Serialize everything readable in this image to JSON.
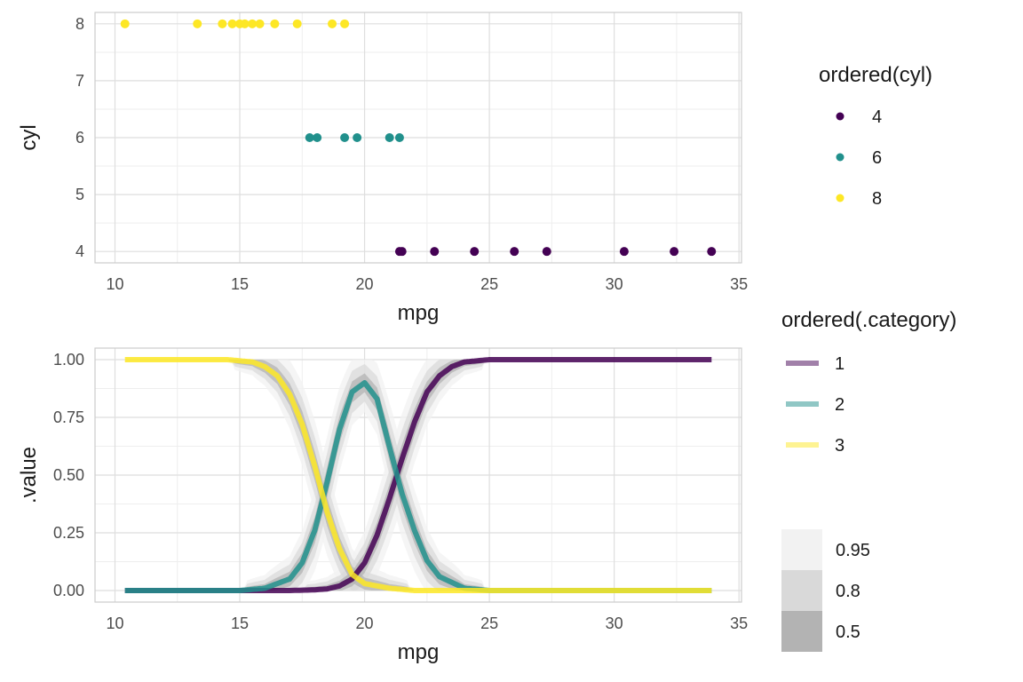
{
  "colors": {
    "cyl_4": "#440154",
    "cyl_6": "#21908C",
    "cyl_8": "#FDE725",
    "ribbon_95": "#f2f2f2",
    "ribbon_80": "#d9d9d9",
    "ribbon_50": "#b3b3b3",
    "grid_major": "#dedede",
    "grid_minor": "#eeeeee",
    "panel_border": "#cccccc"
  },
  "chart_data": [
    {
      "type": "scatter",
      "xlabel": "mpg",
      "ylabel": "cyl",
      "xlim": [
        9.2,
        35.1
      ],
      "ylim": [
        3.8,
        8.2
      ],
      "x_ticks": [
        10,
        15,
        20,
        25,
        30,
        35
      ],
      "y_ticks": [
        4,
        5,
        6,
        7,
        8
      ],
      "grid": true,
      "legend": {
        "title": "ordered(cyl)",
        "position": "right",
        "entries": [
          "4",
          "6",
          "8"
        ]
      },
      "series": [
        {
          "name": "4",
          "color": "#440154",
          "y": 4,
          "x": [
            21.4,
            21.5,
            22.8,
            24.4,
            26.0,
            27.3,
            30.4,
            32.4,
            33.9
          ]
        },
        {
          "name": "6",
          "color": "#21908C",
          "y": 6,
          "x": [
            17.8,
            18.1,
            19.2,
            19.7,
            21.0,
            21.4
          ]
        },
        {
          "name": "8",
          "color": "#FDE725",
          "y": 8,
          "x": [
            10.4,
            13.3,
            14.3,
            14.7,
            15.0,
            15.2,
            15.5,
            15.8,
            16.4,
            17.3,
            18.7,
            19.2
          ]
        }
      ]
    },
    {
      "type": "line",
      "xlabel": "mpg",
      "ylabel": ".value",
      "xlim": [
        9.2,
        35.1
      ],
      "ylim": [
        -0.05,
        1.05
      ],
      "x_ticks": [
        10,
        15,
        20,
        25,
        30,
        35
      ],
      "y_ticks": [
        "0.00",
        "0.25",
        "0.50",
        "0.75",
        "1.00"
      ],
      "grid": true,
      "legend": {
        "title": "ordered(.category)",
        "position": "right",
        "entries": [
          "1",
          "2",
          "3"
        ]
      },
      "interval_legend": {
        "entries": [
          "0.95",
          "0.8",
          "0.5"
        ]
      },
      "series": [
        {
          "name": "1",
          "color": "#440154",
          "x": [
            10.4,
            17,
            18,
            18.5,
            19,
            19.5,
            20,
            20.5,
            21,
            21.5,
            22,
            22.5,
            23,
            23.5,
            24,
            25,
            33.9
          ],
          "values": [
            0.0,
            0.0,
            0.003,
            0.007,
            0.02,
            0.05,
            0.12,
            0.24,
            0.4,
            0.57,
            0.73,
            0.86,
            0.93,
            0.97,
            0.99,
            1.0,
            1.0
          ]
        },
        {
          "name": "2",
          "color": "#21908C",
          "x": [
            10.4,
            15,
            16,
            17,
            17.5,
            18,
            18.5,
            19,
            19.5,
            20,
            20.5,
            21,
            21.5,
            22,
            22.5,
            23,
            24,
            25,
            33.9
          ],
          "values": [
            0.0,
            0.0,
            0.01,
            0.05,
            0.12,
            0.26,
            0.47,
            0.7,
            0.86,
            0.9,
            0.83,
            0.62,
            0.42,
            0.26,
            0.13,
            0.06,
            0.01,
            0.0,
            0.0
          ]
        },
        {
          "name": "3",
          "color": "#FDE725",
          "x": [
            10.4,
            14.5,
            15.5,
            16,
            16.5,
            17,
            17.5,
            18,
            18.5,
            19,
            19.5,
            20,
            21,
            22,
            23,
            33.9
          ],
          "values": [
            1.0,
            1.0,
            0.99,
            0.97,
            0.93,
            0.85,
            0.72,
            0.54,
            0.34,
            0.18,
            0.07,
            0.03,
            0.01,
            0.0,
            0.0,
            0.0
          ]
        }
      ]
    }
  ]
}
